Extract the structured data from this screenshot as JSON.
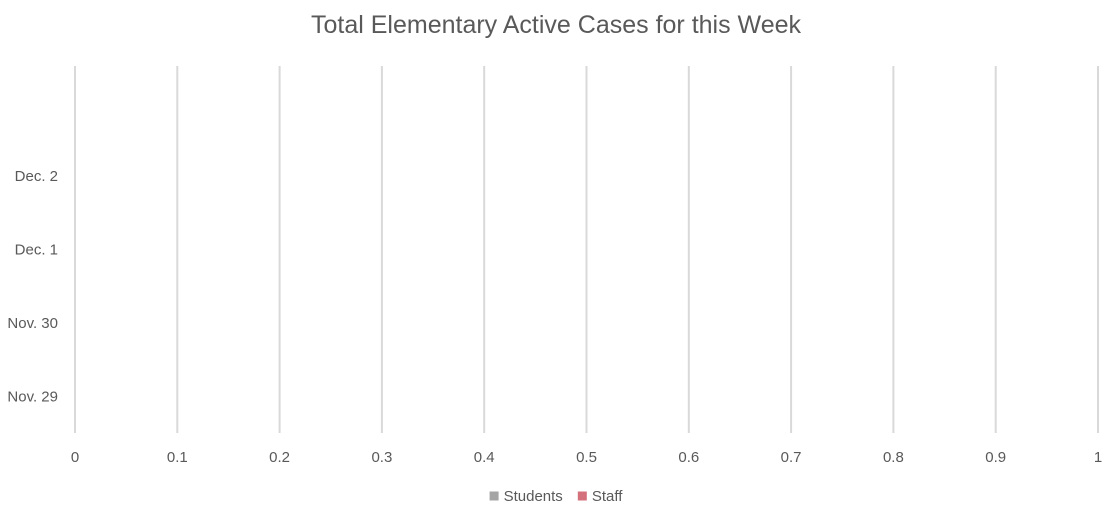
{
  "chart_data": {
    "type": "bar",
    "orientation": "horizontal",
    "title": "Total Elementary Active Cases for this Week",
    "xlabel": "",
    "ylabel": "",
    "categories": [
      "Nov. 29",
      "Nov. 30",
      "Dec. 1",
      "Dec. 2"
    ],
    "series": [
      {
        "name": "Students",
        "color": "#a5a5a5",
        "values": [
          0,
          0,
          0,
          0
        ]
      },
      {
        "name": "Staff",
        "color": "#d4707c",
        "values": [
          0,
          0,
          0,
          0
        ]
      }
    ],
    "xlim": [
      0,
      1
    ],
    "x_ticks": [
      "0",
      "0.1",
      "0.2",
      "0.3",
      "0.4",
      "0.5",
      "0.6",
      "0.7",
      "0.8",
      "0.9",
      "1"
    ],
    "grid": "vertical",
    "legend": "bottom",
    "stacked": true
  }
}
